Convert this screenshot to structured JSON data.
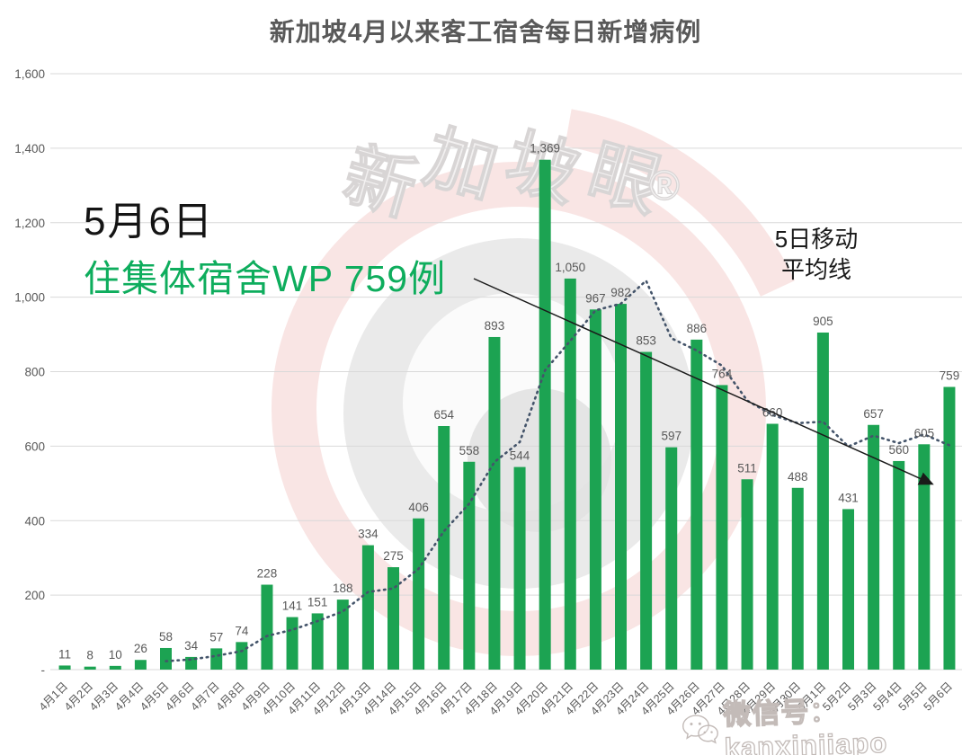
{
  "title": "新加坡4月以来客工宿舍每日新增病例",
  "annotations": {
    "date_label": "5月6日",
    "highlight_label": "住集体宿舍WP 759例",
    "ma_label_line1": "5日移动",
    "ma_label_line2": "平均线"
  },
  "watermarks": {
    "brand_text": "新加坡眼",
    "registered_mark": "®",
    "wechat_label": "微信号：kanxinjiapo"
  },
  "colors": {
    "bar": "#1ca352",
    "ma_line": "#44546a",
    "data_label": "#595959",
    "axis_label": "#595959",
    "grid": "#d9d9d9",
    "trend_arrow": "#1a1a1a",
    "annotation_green": "#0ead5d",
    "watermark_pink": "#f9e5e4",
    "watermark_gray": "#eaeaea",
    "watermark_text_fill": "#f2f0f0",
    "watermark_text_stroke": "#d8d5d5"
  },
  "chart_data": {
    "type": "bar",
    "title": "新加坡4月以来客工宿舍每日新增病例",
    "xlabel": "",
    "ylabel": "",
    "ylim": [
      0,
      1600
    ],
    "ytick_step": 200,
    "zero_tick_text": "-",
    "grid": true,
    "legend_position": "none",
    "categories": [
      "4月1日",
      "4月2日",
      "4月3日",
      "4月4日",
      "4月5日",
      "4月6日",
      "4月7日",
      "4月8日",
      "4月9日",
      "4月10日",
      "4月11日",
      "4月12日",
      "4月13日",
      "4月14日",
      "4月15日",
      "4月16日",
      "4月17日",
      "4月18日",
      "4月19日",
      "4月20日",
      "4月21日",
      "4月22日",
      "4月23日",
      "4月24日",
      "4月25日",
      "4月26日",
      "4月27日",
      "4月28日",
      "4月29日",
      "4月30日",
      "5月1日",
      "5月2日",
      "5月3日",
      "5月4日",
      "5月5日",
      "5月6日"
    ],
    "series": [
      {
        "name": "每日新增病例",
        "type": "bar",
        "values": [
          11,
          8,
          10,
          26,
          58,
          34,
          57,
          74,
          228,
          141,
          151,
          188,
          334,
          275,
          406,
          654,
          558,
          893,
          544,
          1369,
          1050,
          967,
          982,
          853,
          597,
          886,
          764,
          511,
          660,
          488,
          905,
          431,
          657,
          560,
          605,
          759
        ]
      },
      {
        "name": "5日移动平均线",
        "type": "dotted-line",
        "values": [
          null,
          null,
          null,
          null,
          22.6,
          27.2,
          37,
          49.8,
          90.2,
          106.8,
          130.2,
          156.4,
          208.4,
          217.8,
          270.8,
          371.4,
          445.4,
          557.2,
          611,
          803.6,
          882.8,
          964.6,
          982.4,
          1044.2,
          889.8,
          857,
          816.4,
          722.2,
          683.6,
          661.8,
          665.6,
          599,
          628.2,
          608.2,
          631.6,
          602.4
        ]
      }
    ]
  }
}
